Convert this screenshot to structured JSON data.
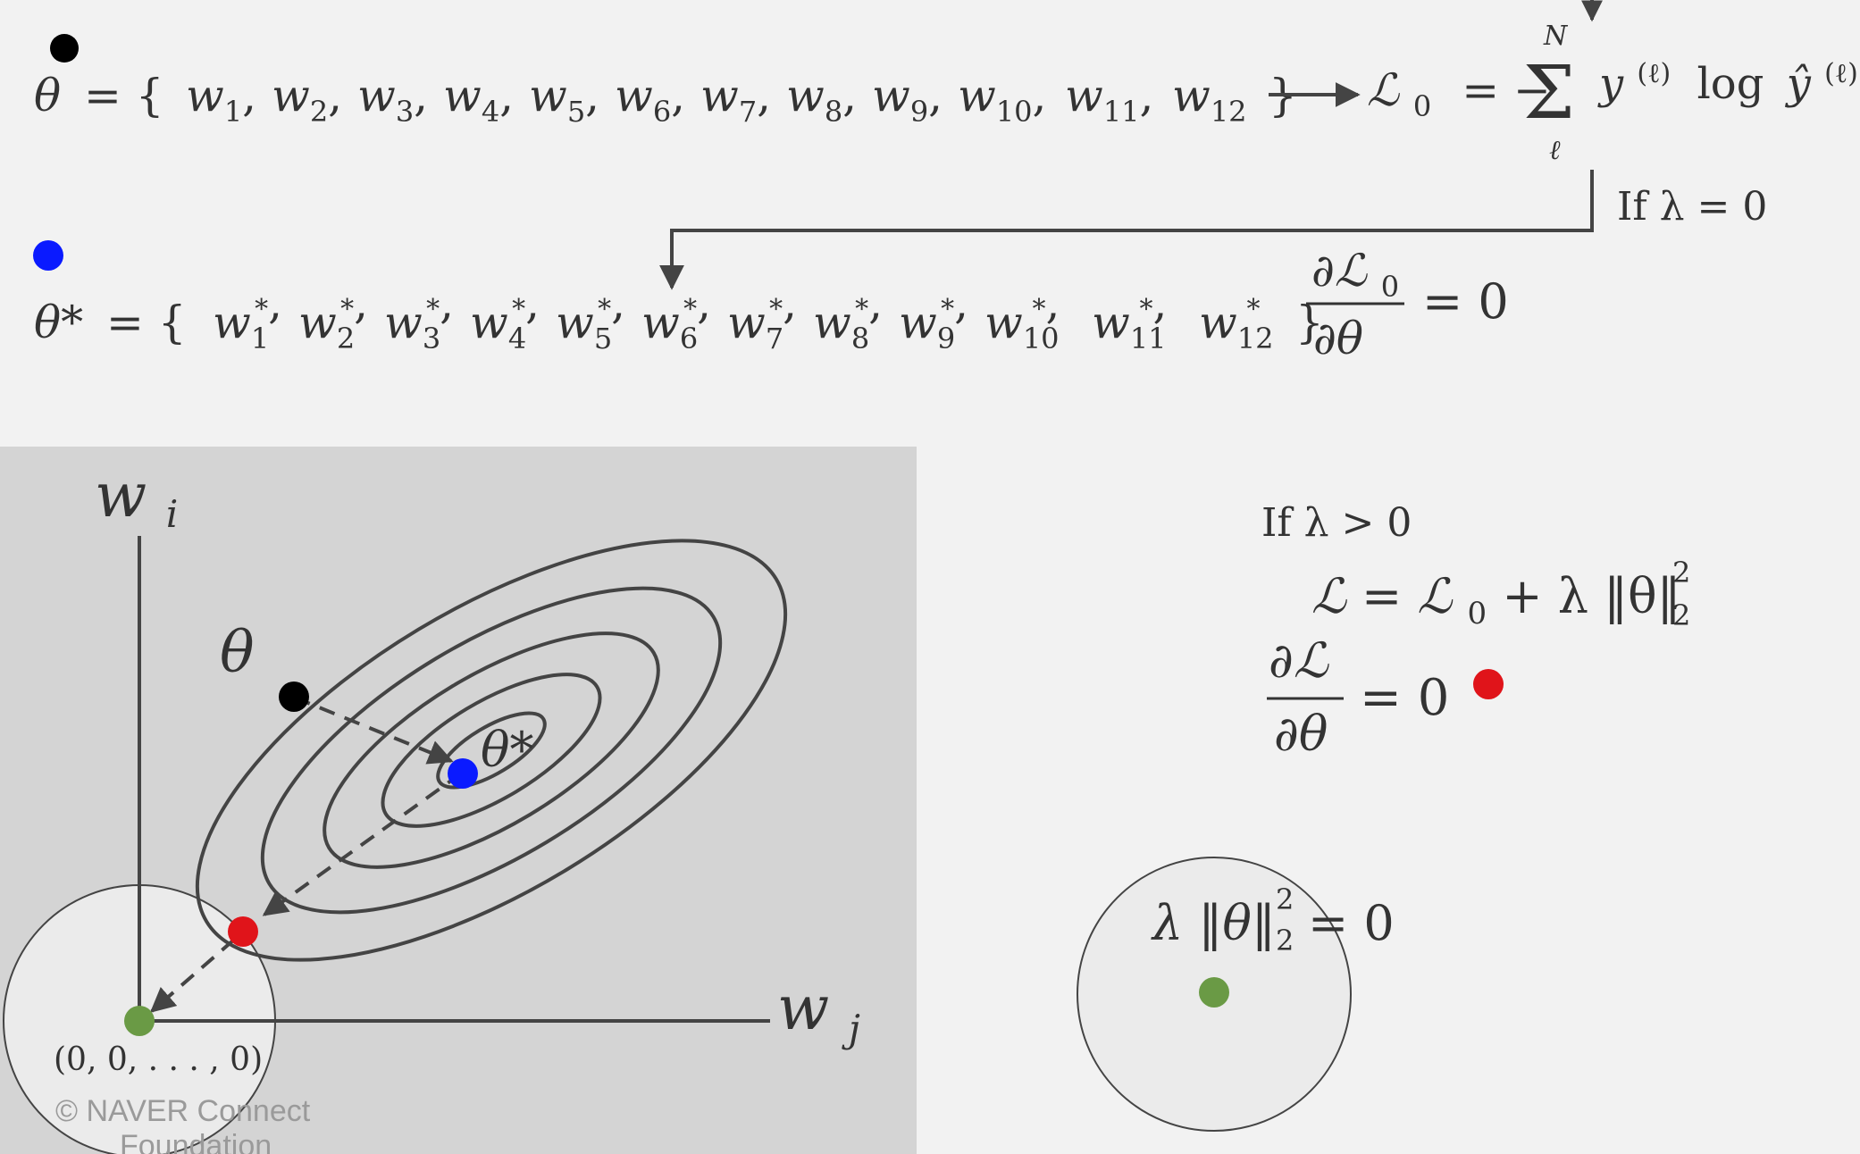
{
  "top": {
    "theta_set": {
      "lhs": "θ",
      "eq": "= {",
      "items": [
        "w1",
        "w2",
        "w3",
        "w4",
        "w5",
        "w6",
        "w7",
        "w8",
        "w9",
        "w10",
        "w11",
        "w12"
      ],
      "close": "}"
    },
    "loss": {
      "lhs": "ℒ",
      "sub": "0",
      "eq": "= −",
      "sigma": "Σ",
      "sigma_top": "N",
      "sigma_bottom": "ℓ",
      "y": "y",
      "y_sup": "(ℓ)",
      "log": "log",
      "yhat": "ŷ",
      "yhat_sup": "(ℓ)"
    },
    "lambda_zero": "If λ = 0",
    "theta_star_set": {
      "lhs": "θ*",
      "eq": "= {",
      "items": [
        "w1*",
        "w2*",
        "w3*",
        "w4*",
        "w5*",
        "w6*",
        "w7*",
        "w8*",
        "w9*",
        "w10*",
        "w11*",
        "w12*"
      ],
      "close": "}"
    },
    "gradient_zero": {
      "num": "∂ℒ",
      "num_sub": "0",
      "den": "∂θ",
      "rhs": "= 0"
    }
  },
  "plot": {
    "axis_y": "w",
    "axis_y_sub": "i",
    "axis_x": "w",
    "axis_x_sub": "j",
    "theta_label": "θ",
    "theta_star_label": "θ*",
    "origin_label": "(0, 0, . . . , 0)",
    "watermark_line1": "© NAVER Connect",
    "watermark_line2": "Foundation"
  },
  "right": {
    "lambda_pos": "If λ > 0",
    "reg_loss": {
      "lhs": "ℒ = ℒ",
      "lhs_sub": "0",
      "plus": " + λ ‖θ‖",
      "sub": "2",
      "sup": "2"
    },
    "reg_grad": {
      "num": "∂ℒ",
      "den": "∂θ",
      "rhs": "= 0"
    },
    "penalty": {
      "text": "λ ‖θ‖",
      "sub": "2",
      "sup": "2",
      "rhs": "= 0"
    }
  },
  "colors": {
    "background": "#f2f2f2",
    "plot_panel": "#d4d4d4",
    "ink": "#444444",
    "black_dot": "#000000",
    "blue_dot": "#0a1aff",
    "red_dot": "#e0141a",
    "green_dot": "#6a9a45",
    "circle_fill": "#ebebeb"
  }
}
